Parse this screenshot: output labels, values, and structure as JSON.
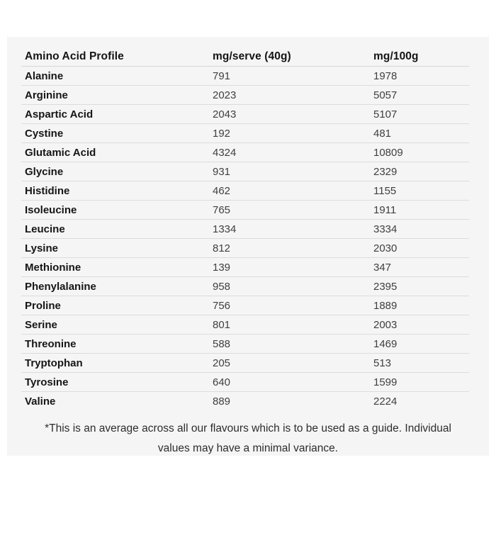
{
  "table": {
    "header": {
      "col1": "Amino Acid Profile",
      "col2": "mg/serve (40g)",
      "col3": "mg/100g"
    },
    "rows": [
      {
        "name": "Alanine",
        "mg_serve": "791",
        "mg_100g": "1978"
      },
      {
        "name": "Arginine",
        "mg_serve": "2023",
        "mg_100g": "5057"
      },
      {
        "name": "Aspartic Acid",
        "mg_serve": "2043",
        "mg_100g": "5107"
      },
      {
        "name": "Cystine",
        "mg_serve": "192",
        "mg_100g": "481"
      },
      {
        "name": "Glutamic Acid",
        "mg_serve": "4324",
        "mg_100g": "10809"
      },
      {
        "name": "Glycine",
        "mg_serve": "931",
        "mg_100g": "2329"
      },
      {
        "name": "Histidine",
        "mg_serve": "462",
        "mg_100g": "1155"
      },
      {
        "name": "Isoleucine",
        "mg_serve": "765",
        "mg_100g": "1911"
      },
      {
        "name": "Leucine",
        "mg_serve": "1334",
        "mg_100g": "3334"
      },
      {
        "name": "Lysine",
        "mg_serve": "812",
        "mg_100g": "2030"
      },
      {
        "name": "Methionine",
        "mg_serve": "139",
        "mg_100g": "347"
      },
      {
        "name": "Phenylalanine",
        "mg_serve": "958",
        "mg_100g": "2395"
      },
      {
        "name": "Proline",
        "mg_serve": "756",
        "mg_100g": "1889"
      },
      {
        "name": "Serine",
        "mg_serve": "801",
        "mg_100g": "2003"
      },
      {
        "name": "Threonine",
        "mg_serve": "588",
        "mg_100g": "1469"
      },
      {
        "name": "Tryptophan",
        "mg_serve": "205",
        "mg_100g": "513"
      },
      {
        "name": "Tyrosine",
        "mg_serve": "640",
        "mg_100g": "1599"
      },
      {
        "name": "Valine",
        "mg_serve": "889",
        "mg_100g": "2224"
      }
    ]
  },
  "footnote": "*This is an average across all our flavours which is to be used as a guide. Individual values may have a minimal variance.",
  "colors": {
    "panel_background": "#f5f5f5",
    "row_divider": "#dcdcdc",
    "heading_text": "#141414",
    "value_text": "#3f3f3f"
  }
}
